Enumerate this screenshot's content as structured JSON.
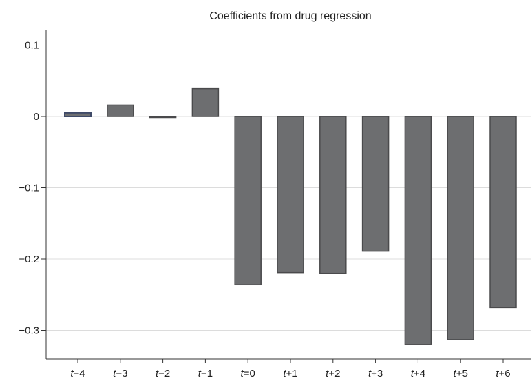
{
  "chart_data": {
    "type": "bar",
    "title": "Coefficients from drug regression",
    "xlabel": "",
    "ylabel": "",
    "categories": [
      {
        "var": "t",
        "op": "−",
        "num": "4"
      },
      {
        "var": "t",
        "op": "−",
        "num": "3"
      },
      {
        "var": "t",
        "op": "−",
        "num": "2"
      },
      {
        "var": "t",
        "op": "−",
        "num": "1"
      },
      {
        "var": "t",
        "op": "=",
        "num": "0"
      },
      {
        "var": "t",
        "op": "+",
        "num": "1"
      },
      {
        "var": "t",
        "op": "+",
        "num": "2"
      },
      {
        "var": "t",
        "op": "+",
        "num": "3"
      },
      {
        "var": "t",
        "op": "+",
        "num": "4"
      },
      {
        "var": "t",
        "op": "+",
        "num": "5"
      },
      {
        "var": "t",
        "op": "+",
        "num": "6"
      }
    ],
    "values": [
      0.005,
      0.016,
      -0.001,
      0.039,
      -0.236,
      -0.219,
      -0.22,
      -0.189,
      -0.32,
      -0.313,
      -0.268
    ],
    "ylim": [
      -0.34,
      0.12
    ],
    "yticks": [
      0.1,
      0,
      -0.1,
      -0.2,
      -0.3
    ],
    "ytick_labels": [
      "0.1",
      "0",
      "−0.1",
      "−0.2",
      "−0.3"
    ],
    "grid": true,
    "colors": {
      "bar_fill": "#6d6e70",
      "bar_edge": "#4a4a4c",
      "bar_first_edge": "#3f4a68"
    }
  }
}
